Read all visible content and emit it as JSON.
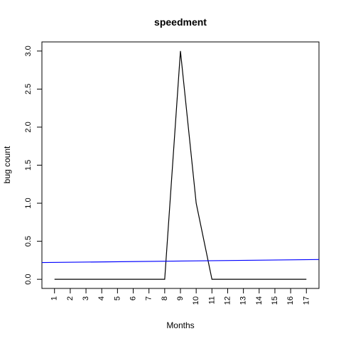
{
  "chart_data": {
    "type": "line",
    "title": "speedment",
    "xlabel": "Months",
    "ylabel": "bug count",
    "x": [
      1,
      2,
      3,
      4,
      5,
      6,
      7,
      8,
      9,
      10,
      11,
      12,
      13,
      14,
      15,
      16,
      17
    ],
    "xlim": [
      0.2,
      17.8
    ],
    "ylim": [
      -0.12,
      3.12
    ],
    "y_ticks": [
      0.0,
      0.5,
      1.0,
      1.5,
      2.0,
      2.5,
      3.0
    ],
    "y_tick_labels": [
      "0.0",
      "0.5",
      "1.0",
      "1.5",
      "2.0",
      "2.5",
      "3.0"
    ],
    "grid": false,
    "series": [
      {
        "color": "#000000",
        "values": [
          0,
          0,
          0,
          0,
          0,
          0,
          0,
          0,
          3,
          1,
          0,
          0,
          0,
          0,
          0,
          0,
          0
        ]
      }
    ],
    "trend_line": {
      "color": "#0000ff",
      "start": [
        0.2,
        0.22
      ],
      "end": [
        17.8,
        0.26
      ]
    }
  }
}
